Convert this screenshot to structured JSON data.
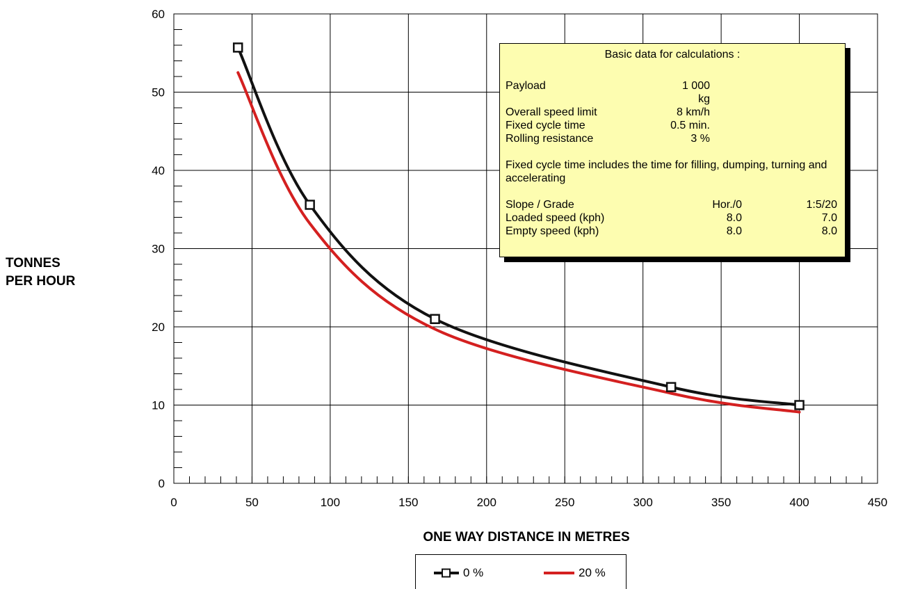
{
  "chart_data": {
    "type": "line",
    "title": "",
    "xlabel": "ONE WAY DISTANCE IN METRES",
    "ylabel_lines": [
      "TONNES",
      "PER HOUR"
    ],
    "xlim": [
      0,
      450
    ],
    "ylim": [
      0,
      60
    ],
    "x_ticks": [
      0,
      50,
      100,
      150,
      200,
      250,
      300,
      350,
      400,
      450
    ],
    "y_ticks": [
      0,
      10,
      20,
      30,
      40,
      50,
      60
    ],
    "grid": true,
    "legend_position": "bottom-center",
    "series": [
      {
        "name": "0 %",
        "color": "#111111",
        "marker": "square",
        "x": [
          41,
          87,
          167,
          318,
          400
        ],
        "y": [
          55.7,
          35.6,
          21.0,
          12.3,
          10.0
        ]
      },
      {
        "name": "20 %",
        "color": "#d42020",
        "marker": "none",
        "x": [
          41,
          87,
          167,
          318,
          400
        ],
        "y": [
          52.5,
          33.2,
          19.7,
          11.5,
          9.1
        ]
      }
    ]
  },
  "infobox": {
    "heading": "Basic data for calculations :",
    "params": [
      {
        "label": "Payload",
        "value": "1 000 kg"
      },
      {
        "label": "Overall speed limit",
        "value": "8 km/h"
      },
      {
        "label": "Fixed cycle time",
        "value": "0.5 min."
      },
      {
        "label": "Rolling resistance",
        "value": "3 %"
      }
    ],
    "note": "Fixed cycle time includes the time for filling, dumping, turning and accelerating",
    "table": [
      {
        "label": "Slope / Grade",
        "a": "Hor./0",
        "b": "1:5/20"
      },
      {
        "label": "Loaded speed (kph)",
        "a": "8.0",
        "b": "7.0"
      },
      {
        "label": "Empty speed (kph)",
        "a": "8.0",
        "b": "8.0"
      }
    ]
  }
}
